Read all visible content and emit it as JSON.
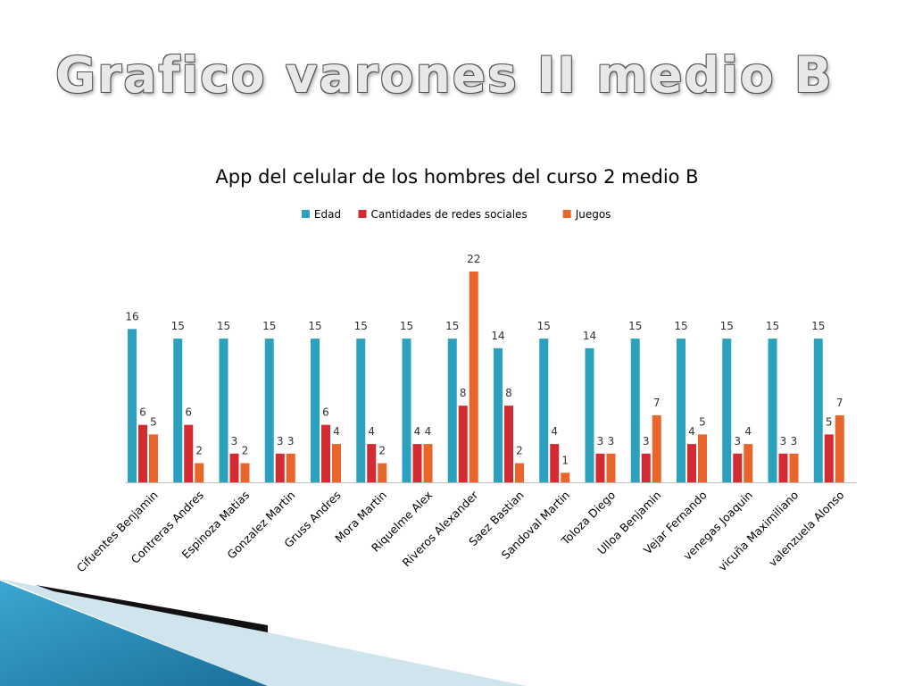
{
  "slide": {
    "title": "Grafico varones II medio B"
  },
  "colors": {
    "edad": "#2ca1be",
    "redes": "#d42a32",
    "juegos": "#e8662a",
    "axis": "#bfbfbf",
    "text": "#333333"
  },
  "chart_data": {
    "type": "bar",
    "title": "App del celular de los hombres del curso 2 medio B",
    "legend_position": "top",
    "grid": false,
    "ylim": [
      0,
      22
    ],
    "categories": [
      "Cifuentes Benjamin",
      "Contreras Andres",
      "Espinoza Matias",
      "Gonzalez Martin",
      "Gruss Andres",
      "Mora Martin",
      "Riquelme Alex",
      "Riveros Alexander",
      "Saez Bastian",
      "Sandoval Martin",
      "Toloza  Diego",
      "Ulloa Benjamin",
      "Vejar Fernando",
      "venegas Joaquin",
      "vicuña Maximiliano",
      "valenzuela Alonso"
    ],
    "series": [
      {
        "name": "Edad",
        "color": "#2ca1be",
        "values": [
          16,
          15,
          15,
          15,
          15,
          15,
          15,
          15,
          14,
          15,
          14,
          15,
          15,
          15,
          15,
          15
        ]
      },
      {
        "name": "Cantidades de redes sociales",
        "color": "#d42a32",
        "values": [
          6,
          6,
          3,
          3,
          6,
          4,
          4,
          8,
          8,
          4,
          3,
          3,
          4,
          3,
          3,
          5
        ]
      },
      {
        "name": "Juegos",
        "color": "#e8662a",
        "values": [
          5,
          2,
          2,
          3,
          4,
          2,
          4,
          22,
          2,
          1,
          3,
          7,
          5,
          4,
          3,
          7
        ]
      }
    ]
  }
}
